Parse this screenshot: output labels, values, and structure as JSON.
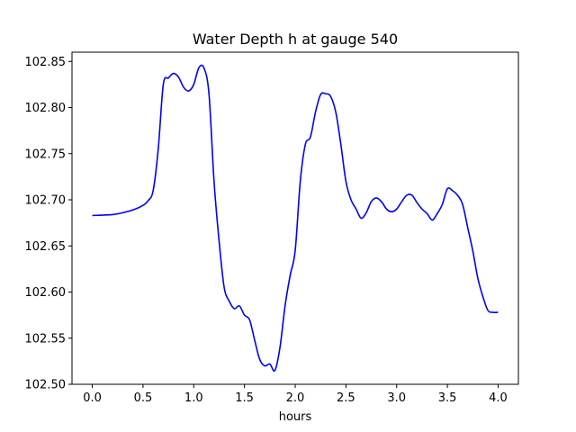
{
  "chart_data": {
    "type": "line",
    "title": "Water Depth h at gauge 540",
    "xlabel": "hours",
    "ylabel": "",
    "xlim": [
      -0.2,
      4.2
    ],
    "ylim": [
      102.5,
      102.86
    ],
    "grid": false,
    "xticks": [
      0.0,
      0.5,
      1.0,
      1.5,
      2.0,
      2.5,
      3.0,
      3.5,
      4.0
    ],
    "xtick_labels": [
      "0.0",
      "0.5",
      "1.0",
      "1.5",
      "2.0",
      "2.5",
      "3.0",
      "3.5",
      "4.0"
    ],
    "yticks": [
      102.5,
      102.55,
      102.6,
      102.65,
      102.7,
      102.75,
      102.8,
      102.85
    ],
    "ytick_labels": [
      "102.50",
      "102.55",
      "102.60",
      "102.65",
      "102.70",
      "102.75",
      "102.80",
      "102.85"
    ],
    "series": [
      {
        "color": "#0000ff",
        "x": [
          0.0,
          0.2,
          0.3,
          0.4,
          0.5,
          0.55,
          0.6,
          0.65,
          0.7,
          0.75,
          0.8,
          0.85,
          0.9,
          0.95,
          1.0,
          1.05,
          1.1,
          1.15,
          1.2,
          1.25,
          1.3,
          1.35,
          1.4,
          1.45,
          1.5,
          1.55,
          1.6,
          1.65,
          1.7,
          1.75,
          1.8,
          1.85,
          1.9,
          1.95,
          2.0,
          2.05,
          2.1,
          2.15,
          2.2,
          2.25,
          2.3,
          2.35,
          2.4,
          2.45,
          2.5,
          2.55,
          2.6,
          2.65,
          2.7,
          2.75,
          2.8,
          2.85,
          2.9,
          2.95,
          3.0,
          3.05,
          3.1,
          3.15,
          3.2,
          3.25,
          3.3,
          3.35,
          3.4,
          3.45,
          3.5,
          3.55,
          3.6,
          3.65,
          3.7,
          3.75,
          3.8,
          3.85,
          3.9,
          3.95,
          4.0
        ],
        "values": [
          102.683,
          102.684,
          102.686,
          102.689,
          102.694,
          102.699,
          102.71,
          102.755,
          102.825,
          102.832,
          102.837,
          102.833,
          102.822,
          102.818,
          102.825,
          102.843,
          102.843,
          102.815,
          102.72,
          102.655,
          102.605,
          102.59,
          102.582,
          102.585,
          102.575,
          102.57,
          102.548,
          102.527,
          102.52,
          102.522,
          102.515,
          102.54,
          102.585,
          102.618,
          102.645,
          102.72,
          102.76,
          102.768,
          102.795,
          102.814,
          102.815,
          102.812,
          102.795,
          102.76,
          102.72,
          102.7,
          102.69,
          102.68,
          102.686,
          102.698,
          102.702,
          102.698,
          102.69,
          102.687,
          102.69,
          102.698,
          102.705,
          102.705,
          102.697,
          102.69,
          102.685,
          102.678,
          102.685,
          102.695,
          102.712,
          102.71,
          102.705,
          102.695,
          102.67,
          102.645,
          102.615,
          102.595,
          102.58,
          102.578,
          102.578
        ]
      }
    ]
  }
}
